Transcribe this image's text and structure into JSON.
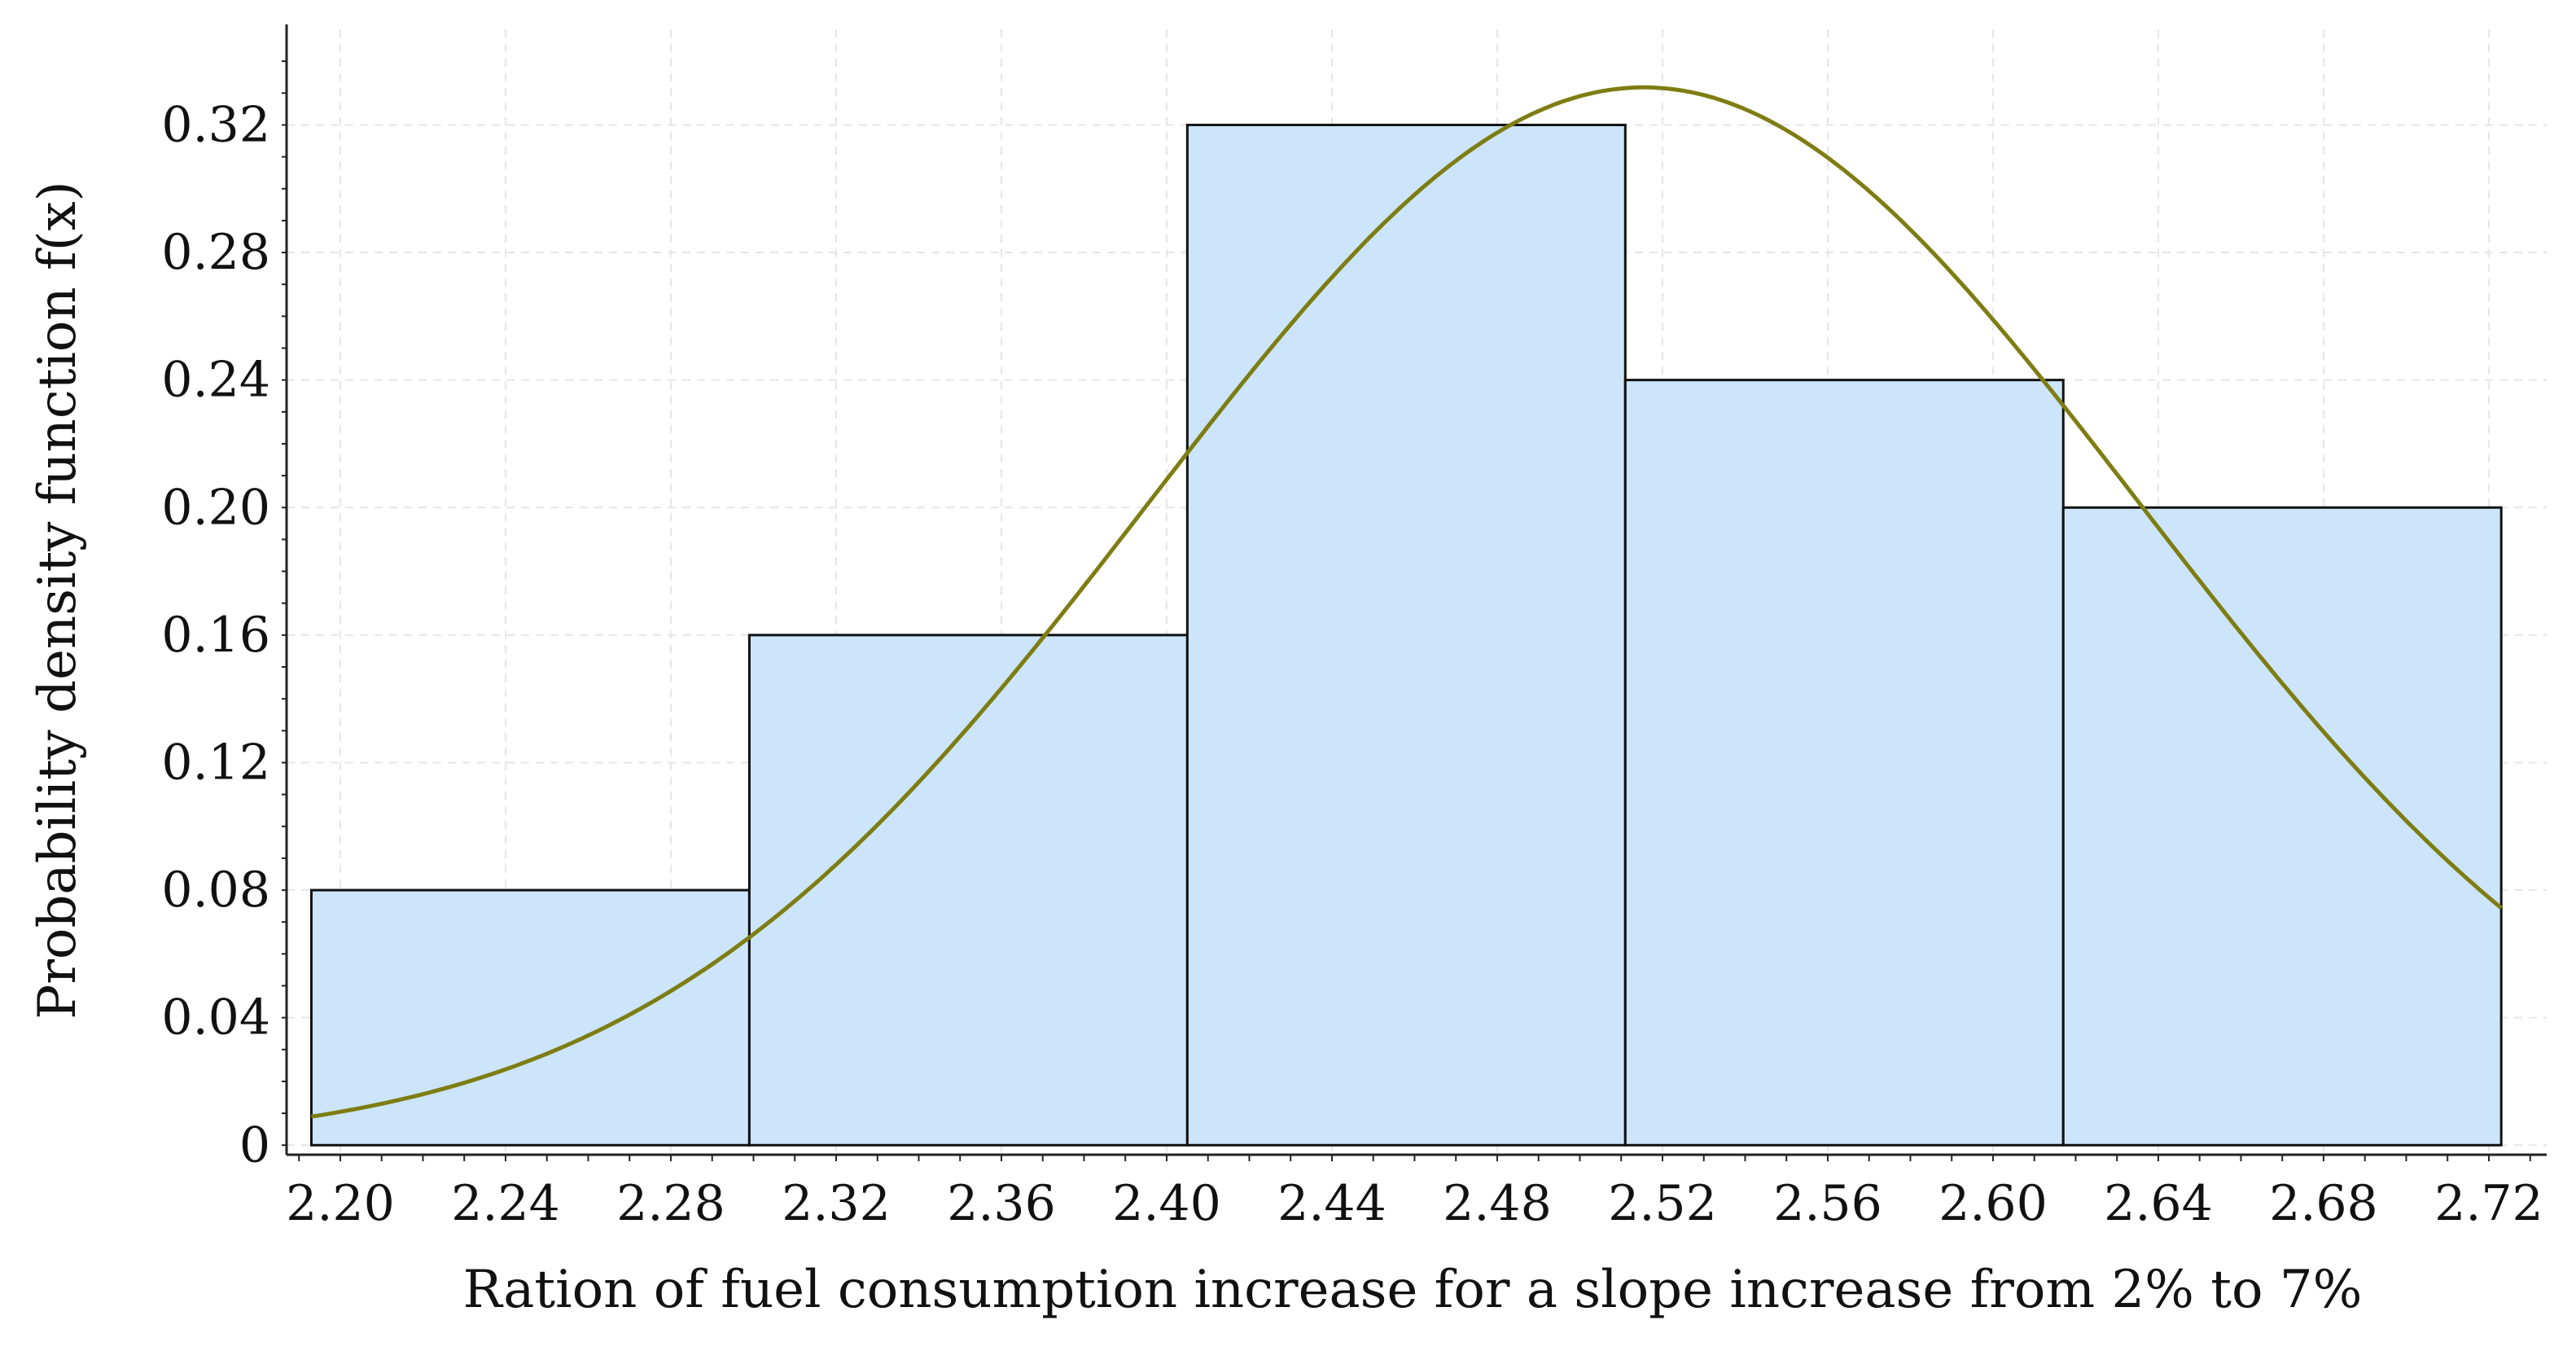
{
  "chart_data": {
    "type": "histogram",
    "title": "",
    "xlabel": "Ration of fuel consumption increase for a slope increase from 2% to 7%",
    "ylabel": "Probability density function f(x)",
    "xlim": [
      2.187,
      2.734
    ],
    "ylim": [
      -0.003,
      0.35
    ],
    "grid": true,
    "xticks": [
      {
        "value": 2.2,
        "label": "2.20"
      },
      {
        "value": 2.24,
        "label": "2.24"
      },
      {
        "value": 2.28,
        "label": "2.28"
      },
      {
        "value": 2.32,
        "label": "2.32"
      },
      {
        "value": 2.36,
        "label": "2.36"
      },
      {
        "value": 2.4,
        "label": "2.40"
      },
      {
        "value": 2.44,
        "label": "2.44"
      },
      {
        "value": 2.48,
        "label": "2.48"
      },
      {
        "value": 2.52,
        "label": "2.52"
      },
      {
        "value": 2.56,
        "label": "2.56"
      },
      {
        "value": 2.6,
        "label": "2.60"
      },
      {
        "value": 2.64,
        "label": "2.64"
      },
      {
        "value": 2.68,
        "label": "2.68"
      },
      {
        "value": 2.72,
        "label": "2.72"
      }
    ],
    "yticks": [
      {
        "value": 0,
        "label": "0"
      },
      {
        "value": 0.04,
        "label": "0.04"
      },
      {
        "value": 0.08,
        "label": "0.08"
      },
      {
        "value": 0.12,
        "label": "0.12"
      },
      {
        "value": 0.16,
        "label": "0.16"
      },
      {
        "value": 0.2,
        "label": "0.20"
      },
      {
        "value": 0.24,
        "label": "0.24"
      },
      {
        "value": 0.28,
        "label": "0.28"
      },
      {
        "value": 0.32,
        "label": "0.32"
      }
    ],
    "bins": [
      {
        "start": 2.193,
        "end": 2.299,
        "value": 0.08
      },
      {
        "start": 2.299,
        "end": 2.405,
        "value": 0.16
      },
      {
        "start": 2.405,
        "end": 2.511,
        "value": 0.32
      },
      {
        "start": 2.511,
        "end": 2.617,
        "value": 0.24
      },
      {
        "start": 2.617,
        "end": 2.723,
        "value": 0.2
      }
    ],
    "fit_curve": {
      "type": "normal",
      "mean": 2.5155,
      "sd": 0.12,
      "scale": 0.0998,
      "x_range": [
        2.193,
        2.723
      ]
    },
    "colors": {
      "bar_fill": "#cce5fb",
      "bar_stroke": "#111111",
      "curve": "#7d7d12",
      "grid": "#e6e6e6",
      "axis": "#222222"
    }
  }
}
